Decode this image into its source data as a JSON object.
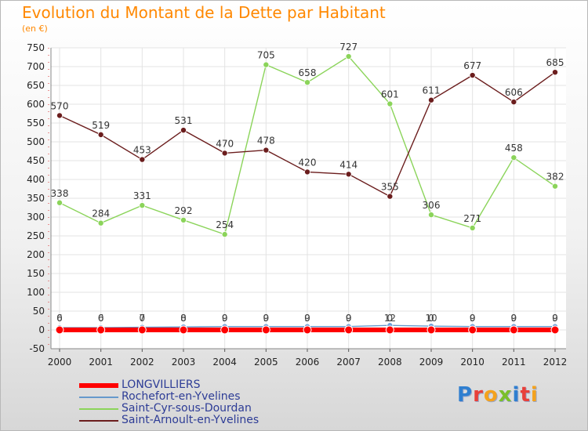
{
  "title": "Evolution du Montant de la Dette par Habitant",
  "subtitle": "(en €)",
  "brand": {
    "text": "Proxiti",
    "letters": [
      {
        "ch": "P",
        "color": "#2f7fd0"
      },
      {
        "ch": "r",
        "color": "#e8403a"
      },
      {
        "ch": "o",
        "color": "#f4a21d"
      },
      {
        "ch": "x",
        "color": "#7bbf2a"
      },
      {
        "ch": "i",
        "color": "#2f7fd0"
      },
      {
        "ch": "t",
        "color": "#e8403a"
      },
      {
        "ch": "i",
        "color": "#f4a21d"
      }
    ]
  },
  "chart_data": {
    "type": "line",
    "x": [
      "2000",
      "2001",
      "2002",
      "2003",
      "2004",
      "2005",
      "2006",
      "2007",
      "2008",
      "2009",
      "2010",
      "2011",
      "2012"
    ],
    "ylim": [
      -50,
      750
    ],
    "yticks": [
      -50,
      0,
      50,
      100,
      150,
      200,
      250,
      300,
      350,
      400,
      450,
      500,
      550,
      600,
      650,
      700,
      750
    ],
    "grid": true,
    "legend_position": "bottom-left",
    "series": [
      {
        "name": "LONGVILLIERS",
        "color": "#ff0000",
        "values": [
          0,
          0,
          0,
          0,
          0,
          0,
          0,
          0,
          0,
          0,
          0,
          0,
          0
        ],
        "labels": [
          "",
          "",
          "",
          "",
          "",
          "",
          "",
          "",
          "",
          "",
          "",
          "",
          ""
        ]
      },
      {
        "name": "Rochefort-en-Yvelines",
        "color": "#6699cc",
        "values": [
          6,
          6,
          7,
          8,
          9,
          9,
          9,
          9,
          12,
          10,
          9,
          9,
          9
        ],
        "labels": [
          "6",
          "6",
          "7",
          "8",
          "9",
          "9",
          "9",
          "9",
          "12",
          "10",
          "9",
          "9",
          "9"
        ]
      },
      {
        "name": "Saint-Cyr-sous-Dourdan",
        "color": "#8bd45a",
        "values": [
          338,
          284,
          331,
          292,
          254,
          705,
          658,
          727,
          601,
          306,
          271,
          458,
          382
        ],
        "labels": [
          "338",
          "284",
          "331",
          "292",
          "254",
          "705",
          "658",
          "727",
          "601",
          "306",
          "271",
          "458",
          "382"
        ]
      },
      {
        "name": "Saint-Arnoult-en-Yvelines",
        "color": "#6b1d1d",
        "values": [
          570,
          519,
          453,
          531,
          470,
          478,
          420,
          414,
          355,
          611,
          677,
          606,
          685
        ],
        "labels": [
          "570",
          "519",
          "453",
          "531",
          "470",
          "478",
          "420",
          "414",
          "355",
          "611",
          "677",
          "606",
          "685"
        ]
      }
    ],
    "extra_labels": [
      "0",
      "0",
      "0",
      "0",
      "0",
      "0",
      "0",
      "0",
      "0",
      "0",
      "0",
      "0",
      "0"
    ]
  }
}
